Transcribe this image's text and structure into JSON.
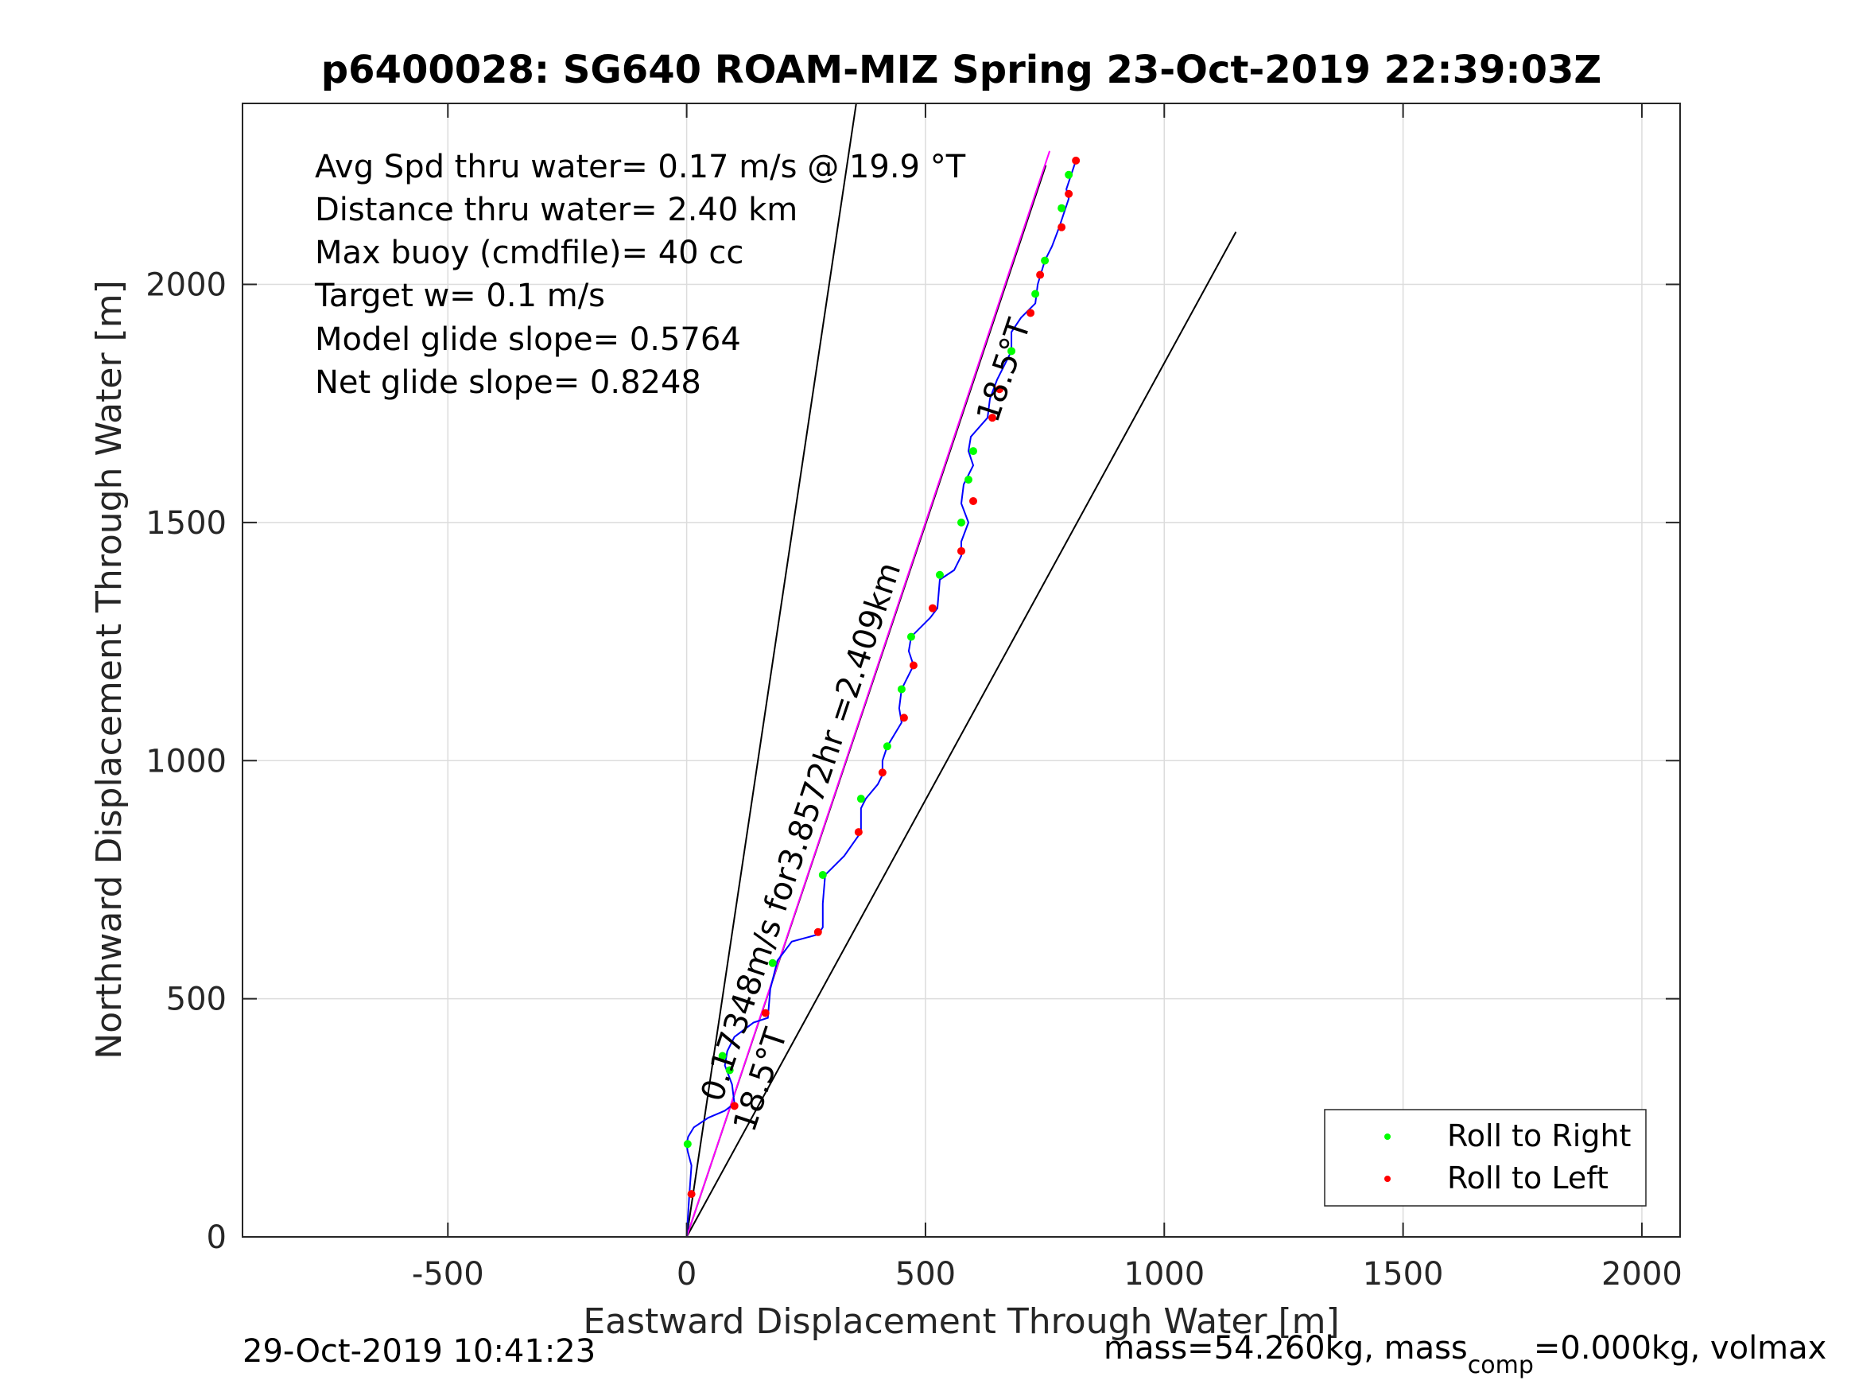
{
  "chart_data": {
    "type": "line",
    "title": "p6400028: SG640 ROAM-MIZ Spring 23-Oct-2019 22:39:03Z",
    "xlabel": "Eastward Displacement Through Water [m]",
    "ylabel": "Northward Displacement Through Water [m]",
    "xlim": [
      -930,
      2080
    ],
    "ylim": [
      0,
      2380
    ],
    "xticks": [
      -500,
      0,
      500,
      1000,
      1500,
      2000
    ],
    "yticks": [
      0,
      500,
      1000,
      1500,
      2000
    ],
    "xtick_labels": [
      "-500",
      "0",
      "500",
      "1000",
      "1500",
      "2000"
    ],
    "ytick_labels": [
      "0",
      "500",
      "1000",
      "1500",
      "2000"
    ],
    "grid": true,
    "legend_position": "bottom-right",
    "legend": [
      "Roll to Right",
      "Roll to Left"
    ],
    "stats": [
      "Avg Spd thru water=  0.17 m/s @  19.9 °T",
      "Distance thru water=  2.40 km",
      "Max buoy (cmdfile)= 40 cc",
      "Target w= 0.1 m/s",
      "Model glide slope= 0.5764",
      "Net glide slope= 0.8248"
    ],
    "rotated_labels": [
      "0.17348m/s for3.8572hr =2.409km",
      "18.5°T",
      "18.5°T"
    ],
    "footer_left": "29-Oct-2019 10:41:23",
    "footer_right": {
      "text_a": "mass=54.260kg, mass",
      "subscript": "comp",
      "text_b": "=0.000kg, volmax"
    },
    "series": [
      {
        "style": "track",
        "color": "#0000ff",
        "x": [
          0,
          5,
          10,
          2,
          0,
          3,
          15,
          45,
          80,
          100,
          95,
          80,
          85,
          100,
          140,
          170,
          175,
          190,
          220,
          275,
          285,
          285,
          290,
          330,
          365,
          365,
          375,
          400,
          410,
          410,
          420,
          450,
          445,
          450,
          475,
          465,
          470,
          510,
          525,
          530,
          560,
          575,
          575,
          590,
          575,
          580,
          600,
          590,
          595,
          630,
          635,
          650,
          680,
          680,
          700,
          730,
          735,
          750,
          765,
          780,
          790,
          800,
          795,
          805,
          815
        ],
        "y": [
          0,
          80,
          150,
          180,
          195,
          210,
          230,
          250,
          265,
          280,
          320,
          360,
          390,
          420,
          450,
          460,
          520,
          580,
          620,
          635,
          650,
          700,
          760,
          800,
          850,
          900,
          920,
          950,
          970,
          1000,
          1030,
          1080,
          1110,
          1150,
          1200,
          1230,
          1260,
          1300,
          1320,
          1380,
          1400,
          1430,
          1460,
          1500,
          1540,
          1580,
          1620,
          1650,
          1680,
          1720,
          1760,
          1800,
          1860,
          1900,
          1930,
          1960,
          2000,
          2050,
          2080,
          2120,
          2150,
          2180,
          2200,
          2230,
          2260
        ]
      },
      {
        "name": "Roll to Right",
        "style": "points",
        "color": "#00ff00",
        "x": [
          2,
          75,
          90,
          180,
          285,
          365,
          420,
          450,
          470,
          530,
          575,
          590,
          600,
          680,
          730,
          750,
          785,
          800
        ],
        "y": [
          195,
          380,
          350,
          575,
          760,
          920,
          1030,
          1150,
          1260,
          1390,
          1500,
          1590,
          1650,
          1860,
          1980,
          2050,
          2160,
          2230
        ]
      },
      {
        "name": "Roll to Left",
        "style": "points",
        "color": "#ff0000",
        "x": [
          10,
          100,
          165,
          275,
          360,
          410,
          455,
          475,
          515,
          575,
          600,
          640,
          655,
          720,
          740,
          785,
          800,
          815
        ],
        "y": [
          90,
          275,
          470,
          640,
          850,
          975,
          1090,
          1200,
          1320,
          1440,
          1545,
          1720,
          1780,
          1940,
          2020,
          2120,
          2190,
          2260
        ]
      },
      {
        "style": "reference",
        "color": "#000000",
        "x": [
          0,
          355
        ],
        "y": [
          0,
          2380
        ]
      },
      {
        "style": "reference",
        "color": "#000000",
        "x": [
          0,
          1150
        ],
        "y": [
          0,
          2110
        ]
      },
      {
        "style": "reference",
        "color": "#000000",
        "x": [
          0,
          752
        ],
        "y": [
          0,
          2250
        ]
      },
      {
        "style": "reference",
        "color": "#ff00ff",
        "x": [
          0,
          760
        ],
        "y": [
          0,
          2280
        ]
      }
    ]
  }
}
